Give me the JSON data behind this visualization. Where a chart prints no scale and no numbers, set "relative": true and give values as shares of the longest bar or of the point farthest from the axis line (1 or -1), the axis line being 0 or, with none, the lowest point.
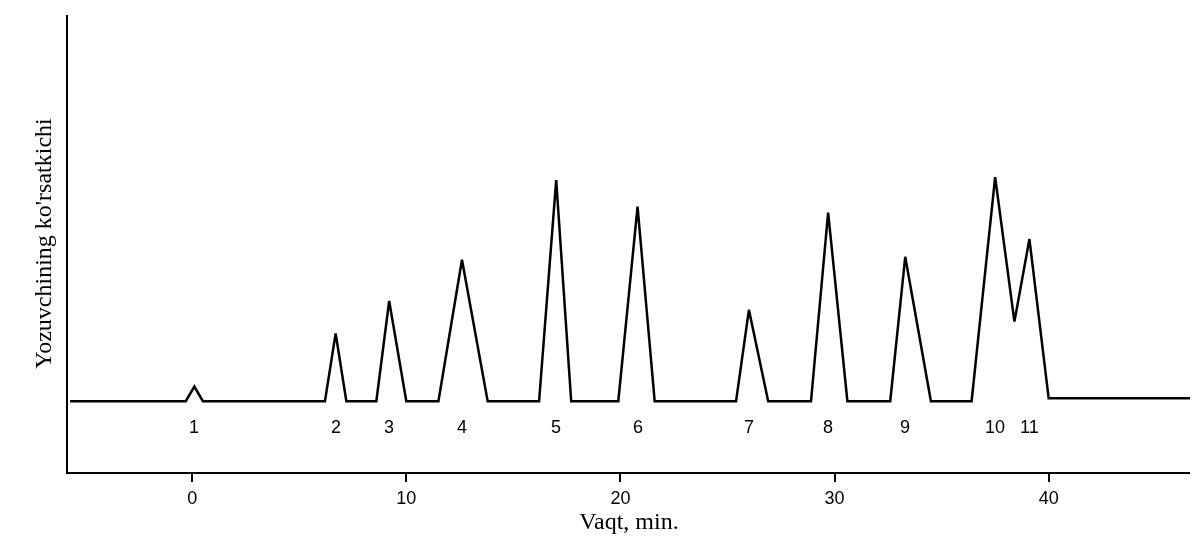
{
  "chart_data": {
    "type": "line",
    "relative": true,
    "xlabel": "Vaqt, min.",
    "ylabel": "Yozuvchining ko'rsatkichi",
    "x": [
      -5.7,
      -0.3,
      0.1,
      0.5,
      6.2,
      6.7,
      7.2,
      8.6,
      9.2,
      10.0,
      11.5,
      12.6,
      13.8,
      16.2,
      17.0,
      17.7,
      19.9,
      20.8,
      21.6,
      25.4,
      26.0,
      26.9,
      28.9,
      29.7,
      30.6,
      32.6,
      33.3,
      34.5,
      36.4,
      37.5,
      38.4,
      39.1,
      40.0,
      46.6
    ],
    "series": [
      {
        "color": "#000000",
        "values": [
          0.24,
          0.24,
          0.29,
          0.24,
          0.24,
          0.47,
          0.24,
          0.24,
          0.58,
          0.24,
          0.24,
          0.72,
          0.24,
          0.24,
          0.99,
          0.24,
          0.24,
          0.9,
          0.24,
          0.24,
          0.55,
          0.24,
          0.24,
          0.88,
          0.24,
          0.24,
          0.73,
          0.24,
          0.24,
          1.0,
          0.51,
          0.79,
          0.25,
          0.25
        ]
      }
    ],
    "xlim": [
      -5.8,
      46.6
    ],
    "xticks": [
      0,
      10,
      20,
      30,
      40
    ],
    "grid": false,
    "marker": "none",
    "line_style": "solid",
    "annotations": [
      "1",
      "2",
      "3",
      "4",
      "5",
      "6",
      "7",
      "8",
      "9",
      "10",
      "11"
    ]
  }
}
